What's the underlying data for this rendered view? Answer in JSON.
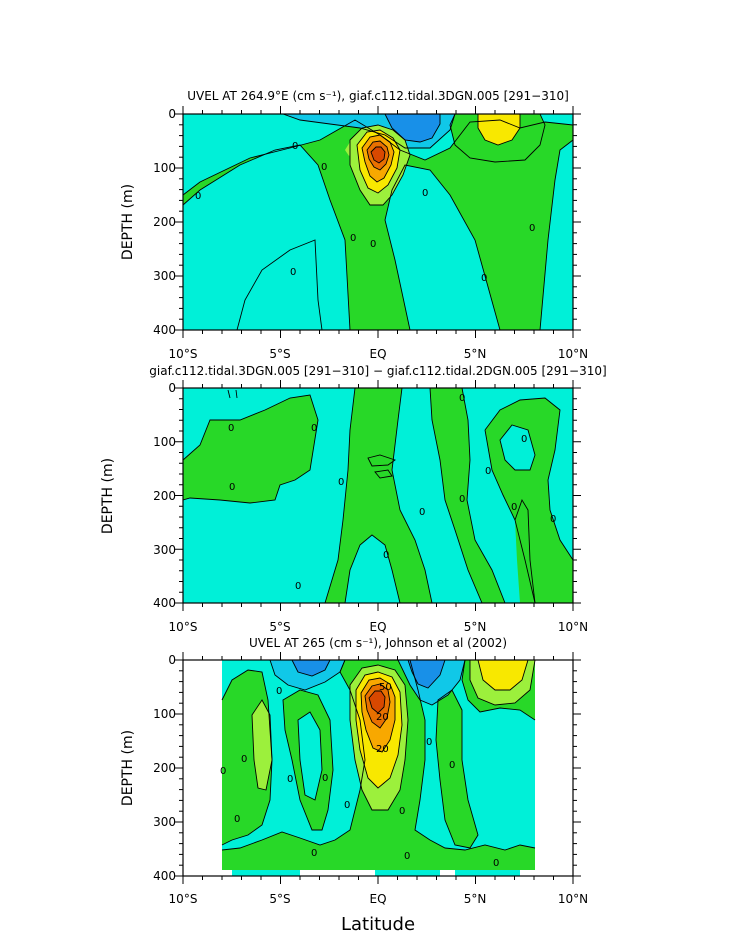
{
  "figure": {
    "xlabel": "Latitude",
    "colors": {
      "cyan": "#00f0d8",
      "green": "#28d828",
      "lightgreen": "#9cf03c",
      "yellow": "#f8e800",
      "orange": "#f8a800",
      "darkorange": "#e87000",
      "red": "#d84800",
      "lightblue": "#10c8e8",
      "blue": "#1890e8",
      "line": "#000000",
      "frame": "#000000"
    }
  },
  "chart_data": [
    {
      "type": "contour",
      "title": "UVEL AT 264.9°E (cm s⁻¹), giaf.c112.tidal.3DGN.005 [291−310]",
      "ylabel": "DEPTH (m)",
      "xlabel": "",
      "xlim": [
        -10,
        10
      ],
      "ylim": [
        400,
        0
      ],
      "xticks": [
        "10°S",
        "5°S",
        "EQ",
        "5°N",
        "10°N"
      ],
      "yticks": [
        "0",
        "100",
        "200",
        "300",
        "400"
      ],
      "contour_labels": [
        "0",
        "0",
        "0",
        "0",
        "0",
        "0",
        "0",
        "0",
        "0"
      ]
    },
    {
      "type": "contour",
      "title": "giaf.c112.tidal.3DGN.005 [291−310] − giaf.c112.tidal.2DGN.005 [291−310]",
      "ylabel": "DEPTH (m)",
      "xlabel": "",
      "xlim": [
        -10,
        10
      ],
      "ylim": [
        400,
        0
      ],
      "xticks": [
        "10°S",
        "5°S",
        "EQ",
        "5°N",
        "10°N"
      ],
      "yticks": [
        "0",
        "100",
        "200",
        "300",
        "400"
      ],
      "contour_labels": [
        "0",
        "0",
        "0",
        "0",
        "0",
        "0",
        "0",
        "0",
        "0",
        "0",
        "0",
        "0",
        "0"
      ]
    },
    {
      "type": "contour",
      "title": "UVEL AT 265 (cm s⁻¹), Johnson et al (2002)",
      "ylabel": "DEPTH (m)",
      "xlabel": "Latitude",
      "xlim": [
        -10,
        10
      ],
      "ylim": [
        400,
        0
      ],
      "xticks": [
        "10°S",
        "5°S",
        "EQ",
        "5°N",
        "10°N"
      ],
      "yticks": [
        "0",
        "100",
        "200",
        "300",
        "400"
      ],
      "contour_labels": [
        "0",
        "0",
        "0",
        "0",
        "0",
        "0",
        "0",
        "0",
        "0",
        "0",
        "0",
        "0",
        "0",
        "20",
        "20",
        "50"
      ]
    }
  ]
}
